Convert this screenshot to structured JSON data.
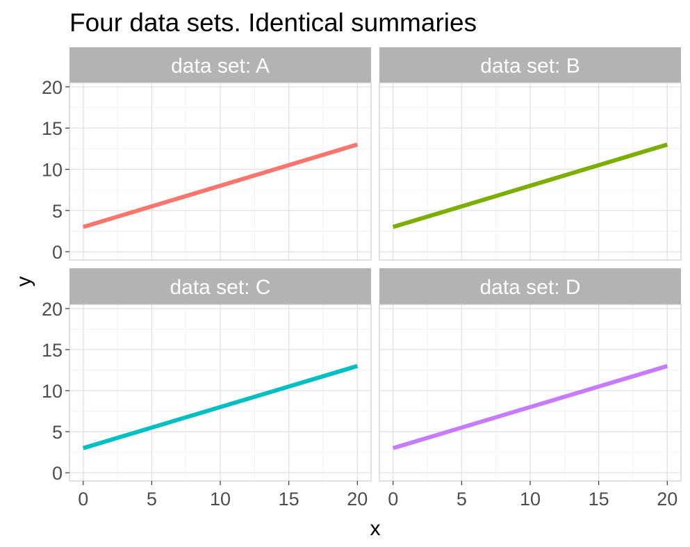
{
  "chart_data": {
    "type": "line",
    "title": "Four data sets. Identical summaries",
    "xlabel": "x",
    "ylabel": "y",
    "xlim": [
      -1,
      21
    ],
    "ylim": [
      -1,
      20.5
    ],
    "x_ticks": [
      0,
      5,
      10,
      15,
      20
    ],
    "y_ticks": [
      0,
      5,
      10,
      15,
      20
    ],
    "grid": true,
    "facet_prefix": "data set: ",
    "series": [
      {
        "name": "A",
        "color": "#f8766d",
        "x": [
          0,
          20
        ],
        "y": [
          3,
          13
        ]
      },
      {
        "name": "B",
        "color": "#7cae00",
        "x": [
          0,
          20
        ],
        "y": [
          3,
          13
        ]
      },
      {
        "name": "C",
        "color": "#00bfc4",
        "x": [
          0,
          20
        ],
        "y": [
          3,
          13
        ]
      },
      {
        "name": "D",
        "color": "#c77cff",
        "x": [
          0,
          20
        ],
        "y": [
          3,
          13
        ]
      }
    ]
  }
}
